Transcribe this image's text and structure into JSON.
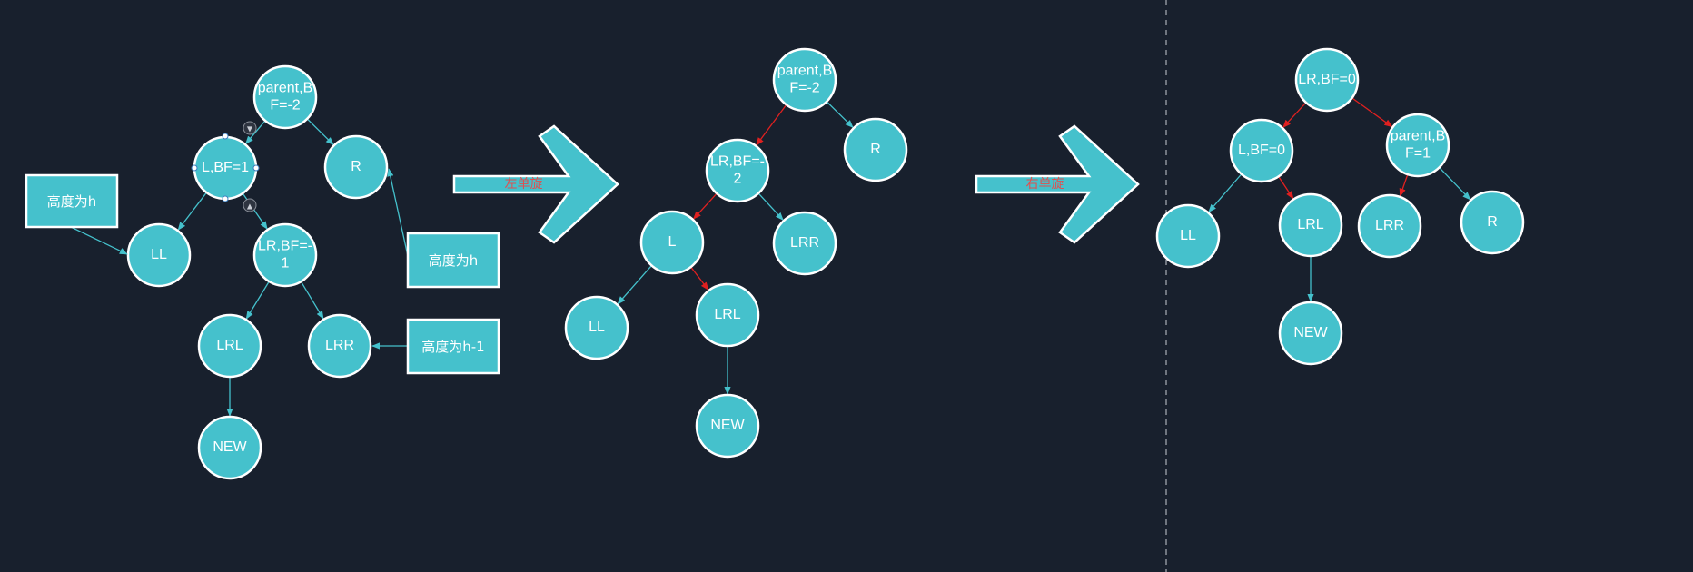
{
  "diagram1": {
    "nodes": {
      "parent": [
        "parent,B",
        "F=-2"
      ],
      "L": [
        "L,BF=1"
      ],
      "R": [
        "R"
      ],
      "LL": [
        "LL"
      ],
      "LR": [
        "LR,BF=-",
        "1"
      ],
      "LRL": [
        "LRL"
      ],
      "LRR": [
        "LRR"
      ],
      "NEW": [
        "NEW"
      ]
    },
    "notes": {
      "height_h_left": "高度为h",
      "height_h_right": "高度为h",
      "height_h_minus_1": "高度为h-1"
    }
  },
  "arrow1": {
    "label": "左单旋"
  },
  "diagram2": {
    "nodes": {
      "parent": [
        "parent,B",
        "F=-2"
      ],
      "R": [
        "R"
      ],
      "LR": [
        "LR,BF=-",
        "2"
      ],
      "LRR": [
        "LRR"
      ],
      "L": [
        "L"
      ],
      "LL": [
        "LL"
      ],
      "LRL": [
        "LRL"
      ],
      "NEW": [
        "NEW"
      ]
    }
  },
  "arrow2": {
    "label": "右单旋"
  },
  "diagram3": {
    "nodes": {
      "LR": [
        "LR,BF=0"
      ],
      "L": [
        "L,BF=0"
      ],
      "parent": [
        "parent,B",
        "F=1"
      ],
      "LL": [
        "LL"
      ],
      "LRL": [
        "LRL"
      ],
      "LRR": [
        "LRR"
      ],
      "R": [
        "R"
      ],
      "NEW": [
        "NEW"
      ]
    }
  },
  "colors": {
    "background": "#18202d",
    "node_fill": "#45c1cc",
    "node_stroke": "#ffffff",
    "edge_normal": "#45c1cc",
    "edge_rotated": "#e02020",
    "divider": "#c8ccd4"
  }
}
